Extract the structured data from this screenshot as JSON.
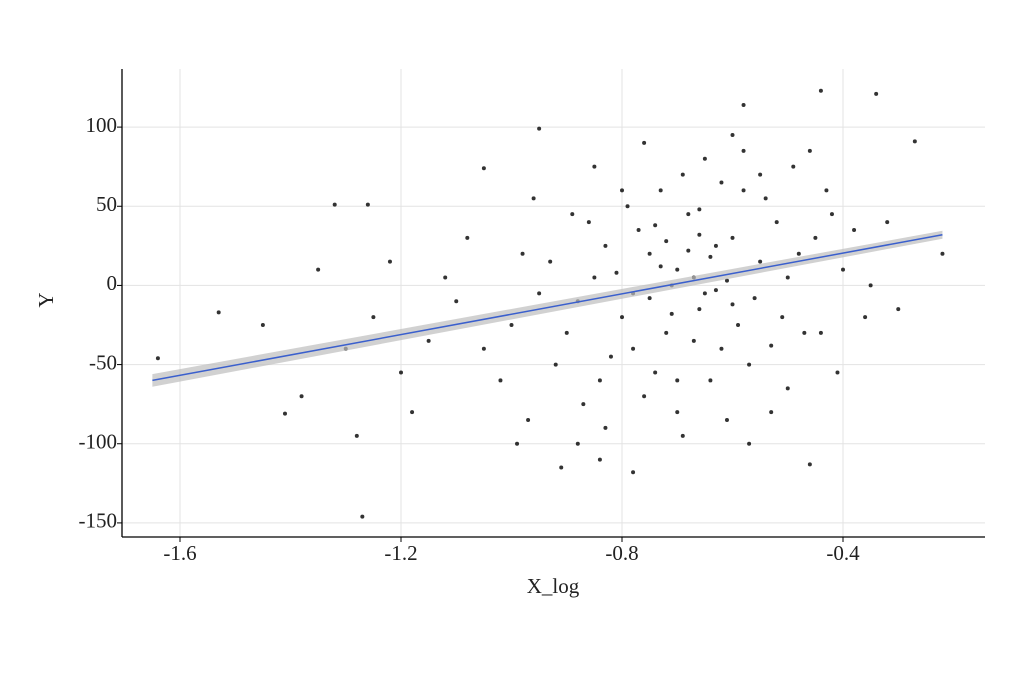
{
  "chart_data": {
    "type": "scatter",
    "x_label": "X_log",
    "y_label": "Y",
    "xlim": [
      -1.705,
      -0.143
    ],
    "ylim": [
      -158.9,
      136.7
    ],
    "xticks": [
      -1.6,
      -1.2,
      -0.8,
      -0.4
    ],
    "yticks": [
      -150,
      -100,
      -50,
      0,
      50,
      100
    ],
    "grid": true,
    "color": "#000000",
    "x": [
      -1.64,
      -1.53,
      -1.27,
      -1.32,
      -1.26,
      -1.41,
      -0.95,
      -0.58,
      -0.44,
      -0.34,
      -0.27,
      -0.22,
      -0.46,
      -0.78,
      -0.91,
      -1.05,
      -0.7,
      -0.65,
      -0.75,
      -0.6,
      -0.8,
      -0.68,
      -0.72,
      -0.55,
      -0.85,
      -0.62,
      -0.58,
      -0.77,
      -0.66,
      -0.71,
      -0.63,
      -0.82,
      -0.52,
      -0.74,
      -0.69,
      -0.59,
      -0.88,
      -0.5,
      -0.79,
      -0.64,
      -0.56,
      -0.73,
      -0.61,
      -0.67,
      -0.83,
      -0.54,
      -0.9,
      -0.48,
      -0.76,
      -0.65,
      -0.57,
      -0.81,
      -0.7,
      -0.62,
      -0.86,
      -0.51,
      -0.95,
      -0.45,
      -0.78,
      -0.68,
      -0.6,
      -0.74,
      -0.84,
      -0.53,
      -0.66,
      -0.71,
      -1.0,
      -0.42,
      -0.93,
      -0.47,
      -0.87,
      -0.58,
      -0.8,
      -0.69,
      -0.63,
      -0.55,
      -1.05,
      -0.4,
      -0.98,
      -0.44,
      -0.89,
      -0.5,
      -0.76,
      -0.61,
      -0.72,
      -0.67,
      -1.1,
      -0.38,
      -1.02,
      -0.43,
      -0.92,
      -0.49,
      -0.83,
      -0.57,
      -0.75,
      -0.64,
      -1.15,
      -0.35,
      -1.08,
      -0.36,
      -0.97,
      -0.46,
      -0.85,
      -0.6,
      -0.7,
      -0.78,
      -1.2,
      -0.32,
      -1.12,
      -0.3,
      -0.96,
      -0.41,
      -0.88,
      -0.53,
      -0.73,
      -0.66,
      -1.25,
      -1.3,
      -1.18,
      -1.35,
      -1.22,
      -1.28,
      -1.38,
      -1.45,
      -0.99,
      -0.84
    ],
    "values": [
      -46,
      -17,
      -146,
      51,
      51,
      -81,
      99,
      114,
      123,
      121,
      91,
      20,
      -113,
      -118,
      -115,
      74,
      10,
      -5,
      20,
      30,
      -20,
      45,
      -30,
      15,
      5,
      -40,
      60,
      35,
      -15,
      0,
      25,
      -45,
      40,
      -55,
      70,
      -25,
      -10,
      5,
      50,
      -60,
      -8,
      12,
      3,
      -35,
      25,
      55,
      -30,
      20,
      -70,
      80,
      -50,
      8,
      -80,
      65,
      40,
      -20,
      -5,
      30,
      -40,
      22,
      -12,
      38,
      -60,
      -38,
      48,
      -18,
      -25,
      45,
      15,
      -30,
      -75,
      85,
      60,
      -95,
      -3,
      70,
      -40,
      10,
      20,
      -30,
      45,
      -65,
      90,
      -85,
      28,
      5,
      -10,
      35,
      -60,
      60,
      -50,
      75,
      -90,
      -100,
      -8,
      18,
      -35,
      0,
      30,
      -20,
      -85,
      85,
      75,
      95,
      -60,
      -5,
      -55,
      40,
      5,
      -15,
      55,
      -55,
      -100,
      -80,
      60,
      32,
      -20,
      -40,
      -80,
      10,
      15,
      -95,
      -70,
      -25,
      -100,
      -110
    ],
    "fit": {
      "color": "#3a5fcd",
      "band_color": "#bebebe",
      "x": [
        -1.65,
        -0.22
      ],
      "values": [
        -60,
        32
      ],
      "lower": [
        -64,
        29.5
      ],
      "upper": [
        -56,
        34.5
      ]
    }
  }
}
